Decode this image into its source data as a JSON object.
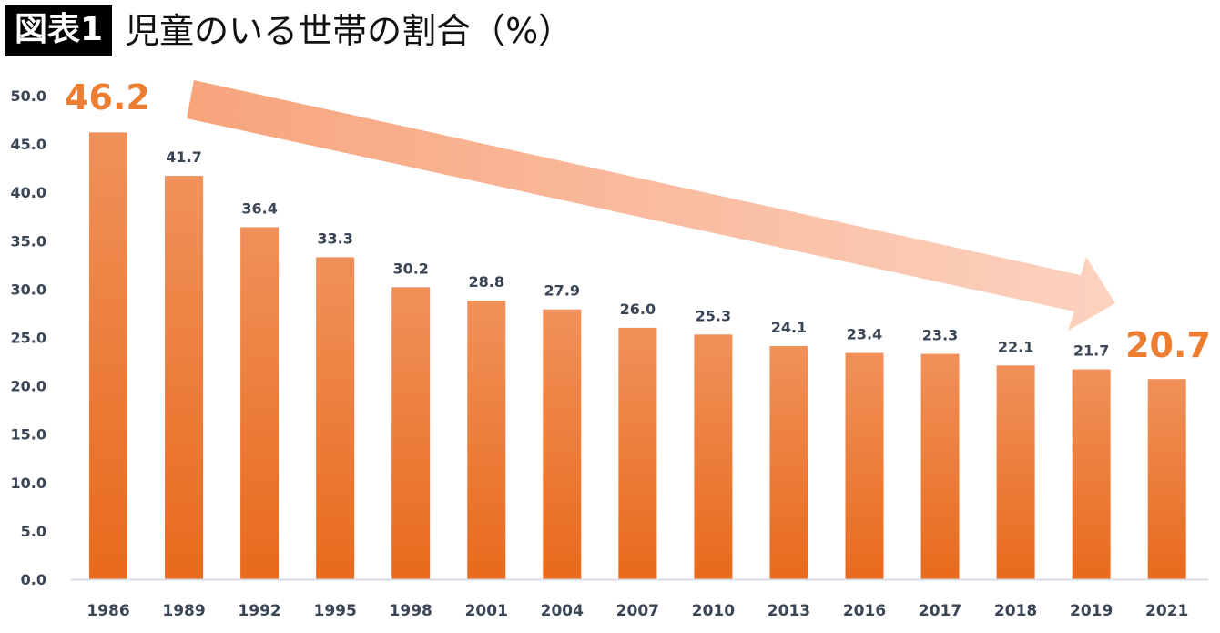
{
  "title": {
    "badge": "図表1",
    "text": "児童のいる世帯の割合（%）"
  },
  "colors": {
    "bar_top": "#f0915a",
    "bar_bottom": "#e86a1c",
    "highlight": "#ed7d31",
    "arrow": "#f9b08f",
    "axis": "#d6dce4",
    "text": "#3a4556"
  },
  "chart_data": {
    "type": "bar",
    "title": "児童のいる世帯の割合（%）",
    "xlabel": "",
    "ylabel": "",
    "categories": [
      "1986",
      "1989",
      "1992",
      "1995",
      "1998",
      "2001",
      "2004",
      "2007",
      "2010",
      "2013",
      "2016",
      "2017",
      "2018",
      "2019",
      "2021"
    ],
    "values": [
      46.2,
      41.7,
      36.4,
      33.3,
      30.2,
      28.8,
      27.9,
      26.0,
      25.3,
      24.1,
      23.4,
      23.3,
      22.1,
      21.7,
      20.7
    ],
    "value_labels": [
      "46.2",
      "41.7",
      "36.4",
      "33.3",
      "30.2",
      "28.8",
      "27.9",
      "26.0",
      "25.3",
      "24.1",
      "23.4",
      "23.3",
      "22.1",
      "21.7",
      "20.7"
    ],
    "highlighted_labels": [
      "1986",
      "2021"
    ],
    "ylim": [
      0,
      50
    ],
    "yticks": [
      "0.0",
      "5.0",
      "10.0",
      "15.0",
      "20.0",
      "25.0",
      "30.0",
      "35.0",
      "40.0",
      "45.0",
      "50.0"
    ],
    "grid": false,
    "legend": "none",
    "annotations": [
      {
        "type": "arrow",
        "from": "1986",
        "to": "2021",
        "meaning": "declining trend"
      }
    ]
  }
}
